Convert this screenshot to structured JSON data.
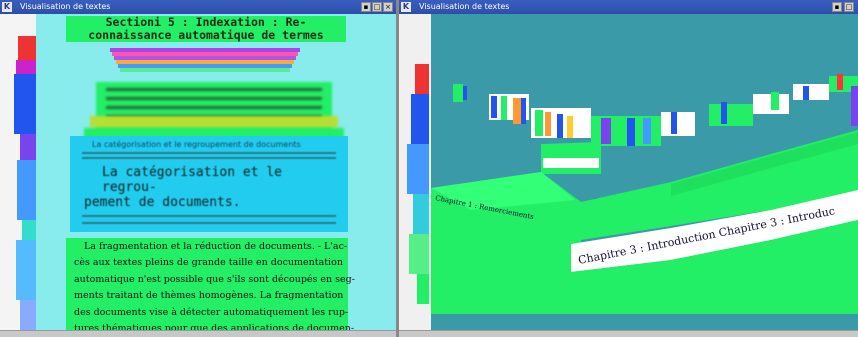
{
  "left_window": {
    "title": "Visualisation de textes",
    "section_heading": "Section 5 : Indexation : Re- connaissance automatique de termes",
    "heading_line1": "Sectioni 5 : Indexation : Re-",
    "heading_line2": "connaissance automatique de termes",
    "chapter_title_line1": "La catégorisation et le regrou-",
    "chapter_title_line2": "pement de documents.",
    "blurred_top": "La catégorisation et le regroupement de documents",
    "body_lines": [
      "La fragmentation et la réduction de documents. - L'ac-",
      "cès aux textes pleins de grande taille en documentation",
      "automatique n'est possible que s'ils sont découpés en seg-",
      "ments traitant de thèmes homogènes. La fragmentation",
      "des documents vise à détecter automatiquement les rup-",
      "tures thématiques pour que des applications de documen-"
    ],
    "colors": {
      "background": "#88ecec",
      "page_green": "#22ee66",
      "page_blue": "#22ccee"
    }
  },
  "right_window": {
    "title": "Visualisation de textes",
    "ribbon_label_1": "Chapitre 1 : Remerciements",
    "ribbon_label_2": "Chapitre 3 : Introduction Chapitre 3 : Introduc",
    "colors": {
      "background": "#3a9aa8",
      "block_green": "#22ee66",
      "ribbon_white": "#ffffff"
    }
  },
  "icons": [
    "kde-icon",
    "minimize-icon",
    "maximize-icon",
    "close-icon"
  ]
}
